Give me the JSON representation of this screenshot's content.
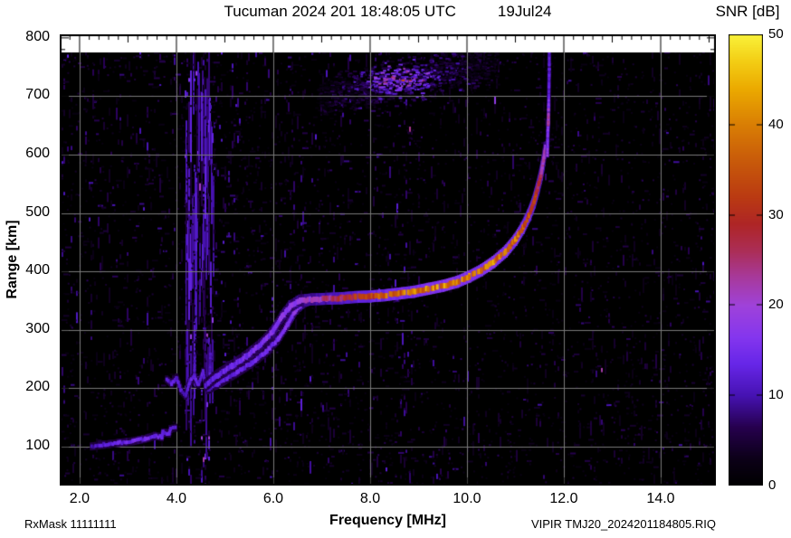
{
  "header": {
    "title": "Tucuman 2024 201 18:48:05 UTC",
    "date": "19Jul24",
    "colorbar_title": "SNR [dB]"
  },
  "footer": {
    "rxmask": "RxMask 11111111",
    "source": "VIPIR  TMJ20_2024201184805.RIQ"
  },
  "chart_data": {
    "type": "heatmap",
    "title": "Tucuman 2024 201 18:48:05 UTC 19Jul24",
    "xlabel": "Frequency [MHz]",
    "ylabel": "Range [km]",
    "xlim": [
      1.59,
      15.14
    ],
    "ylim": [
      33,
      806
    ],
    "xticks": [
      2,
      4,
      6,
      8,
      10,
      12,
      14
    ],
    "xtick_labels": [
      "2.0",
      "4.0",
      "6.0",
      "8.0",
      "10.0",
      "12.0",
      "14.0"
    ],
    "yticks": [
      100,
      200,
      300,
      400,
      500,
      600,
      700,
      800
    ],
    "grid": true,
    "grid_color": "#7a7a7a",
    "background_color": "#000000",
    "no_data_above_km": 775,
    "seed": 20240719,
    "colorbar": {
      "label": "SNR [dB]",
      "min": 0,
      "max": 50,
      "ticks": [
        0,
        10,
        20,
        30,
        40,
        50
      ],
      "palette": [
        [
          0.0,
          "#000000"
        ],
        [
          0.06,
          "#0c0018"
        ],
        [
          0.13,
          "#26004e"
        ],
        [
          0.2,
          "#4612b2"
        ],
        [
          0.27,
          "#6726e8"
        ],
        [
          0.33,
          "#8536ee"
        ],
        [
          0.4,
          "#9f42da"
        ],
        [
          0.46,
          "#a73a9e"
        ],
        [
          0.52,
          "#ab2e58"
        ],
        [
          0.58,
          "#ae2526"
        ],
        [
          0.64,
          "#ba3a12"
        ],
        [
          0.72,
          "#c85a0a"
        ],
        [
          0.8,
          "#d97e04"
        ],
        [
          0.88,
          "#ebaa00"
        ],
        [
          0.94,
          "#f3cd14"
        ],
        [
          1.0,
          "#f9f23a"
        ]
      ]
    },
    "noise_bands": [
      {
        "f0": 1.59,
        "f1": 1.85,
        "s": 0.55
      },
      {
        "f0": 1.85,
        "f1": 2.2,
        "s": 0.4
      },
      {
        "f0": 2.2,
        "f1": 2.7,
        "s": 0.3
      },
      {
        "f0": 2.7,
        "f1": 3.1,
        "s": 0.34
      },
      {
        "f0": 3.1,
        "f1": 3.45,
        "s": 0.42
      },
      {
        "f0": 3.45,
        "f1": 3.8,
        "s": 0.3
      },
      {
        "f0": 3.8,
        "f1": 4.15,
        "s": 0.38
      },
      {
        "f0": 4.15,
        "f1": 4.75,
        "s": 0.85
      },
      {
        "f0": 4.75,
        "f1": 5.1,
        "s": 0.45
      },
      {
        "f0": 5.1,
        "f1": 5.5,
        "s": 0.38
      },
      {
        "f0": 5.5,
        "f1": 5.9,
        "s": 0.33
      },
      {
        "f0": 5.9,
        "f1": 6.25,
        "s": 0.38
      },
      {
        "f0": 6.25,
        "f1": 6.7,
        "s": 0.42
      },
      {
        "f0": 6.7,
        "f1": 7.1,
        "s": 0.36
      },
      {
        "f0": 7.1,
        "f1": 7.6,
        "s": 0.32
      },
      {
        "f0": 7.6,
        "f1": 8.1,
        "s": 0.3
      },
      {
        "f0": 8.1,
        "f1": 8.5,
        "s": 0.38
      },
      {
        "f0": 8.5,
        "f1": 8.9,
        "s": 0.42
      },
      {
        "f0": 8.9,
        "f1": 9.3,
        "s": 0.3
      },
      {
        "f0": 9.3,
        "f1": 9.7,
        "s": 0.34
      },
      {
        "f0": 9.7,
        "f1": 10.1,
        "s": 0.32
      },
      {
        "f0": 10.1,
        "f1": 10.5,
        "s": 0.28
      },
      {
        "f0": 10.5,
        "f1": 10.9,
        "s": 0.26
      },
      {
        "f0": 10.9,
        "f1": 11.3,
        "s": 0.24
      },
      {
        "f0": 11.3,
        "f1": 11.8,
        "s": 0.26
      },
      {
        "f0": 11.8,
        "f1": 12.2,
        "s": 0.22
      },
      {
        "f0": 12.2,
        "f1": 12.55,
        "s": 0.26
      },
      {
        "f0": 12.55,
        "f1": 12.8,
        "s": 0.32
      },
      {
        "f0": 12.8,
        "f1": 13.3,
        "s": 0.2
      },
      {
        "f0": 13.3,
        "f1": 13.8,
        "s": 0.22
      },
      {
        "f0": 13.8,
        "f1": 14.3,
        "s": 0.26
      },
      {
        "f0": 14.3,
        "f1": 14.75,
        "s": 0.22
      },
      {
        "f0": 14.75,
        "f1": 15.14,
        "s": 0.34
      }
    ],
    "spread_f_cloud": {
      "f0": 6.9,
      "f1": 10.6,
      "r_at_f0": 700,
      "r_at_f1": 762,
      "half_width_km": 24,
      "snr": 15,
      "hotspot": {
        "f": 8.6,
        "r": 730,
        "snr": 26
      }
    },
    "traces": [
      {
        "name": "Es-layer",
        "thick": 4,
        "halo": true,
        "points": [
          [
            2.25,
            100,
            10
          ],
          [
            2.5,
            103,
            12
          ],
          [
            2.8,
            106,
            13
          ],
          [
            3.1,
            109,
            14
          ],
          [
            3.35,
            113,
            14
          ],
          [
            3.55,
            118,
            14
          ],
          [
            3.7,
            116,
            13
          ],
          [
            3.72,
            124,
            13
          ],
          [
            3.85,
            122,
            14
          ],
          [
            3.88,
            130,
            13
          ],
          [
            3.98,
            132,
            12
          ]
        ]
      },
      {
        "name": "E-F-cusp-jag",
        "thick": 4,
        "halo": true,
        "points": [
          [
            3.8,
            215,
            11
          ],
          [
            3.9,
            208,
            12
          ],
          [
            4.0,
            218,
            12
          ],
          [
            4.1,
            195,
            11
          ],
          [
            4.19,
            187,
            11
          ],
          [
            4.28,
            212,
            13
          ],
          [
            4.37,
            220,
            13
          ],
          [
            4.45,
            205,
            12
          ],
          [
            4.55,
            228,
            13
          ],
          [
            4.6,
            205,
            12
          ]
        ]
      },
      {
        "name": "cusp-spike-1",
        "thick": 3,
        "halo": false,
        "points": [
          [
            4.37,
            218,
            12
          ],
          [
            4.38,
            255,
            10
          ]
        ]
      },
      {
        "name": "cusp-spike-2",
        "thick": 3,
        "halo": false,
        "points": [
          [
            4.69,
            215,
            12
          ],
          [
            4.7,
            260,
            10
          ]
        ]
      },
      {
        "name": "F-layer-X-branch",
        "thick": 5,
        "halo": true,
        "points": [
          [
            4.65,
            198,
            11
          ],
          [
            4.95,
            212,
            12
          ],
          [
            5.25,
            227,
            13
          ],
          [
            5.55,
            243,
            13
          ],
          [
            5.85,
            262,
            14
          ],
          [
            6.1,
            284,
            15
          ],
          [
            6.3,
            310,
            16
          ],
          [
            6.45,
            332,
            17
          ],
          [
            6.62,
            346,
            18
          ],
          [
            6.78,
            351,
            18
          ]
        ]
      },
      {
        "name": "F-layer-O-branch",
        "thick": 6,
        "halo": true,
        "points": [
          [
            4.6,
            205,
            12
          ],
          [
            4.85,
            222,
            13
          ],
          [
            5.15,
            238,
            14
          ],
          [
            5.45,
            255,
            15
          ],
          [
            5.75,
            275,
            15
          ],
          [
            6.0,
            298,
            16
          ],
          [
            6.18,
            322,
            17
          ],
          [
            6.35,
            340,
            18
          ],
          [
            6.55,
            350,
            19
          ],
          [
            6.8,
            352,
            21
          ],
          [
            7.1,
            353,
            24
          ],
          [
            7.4,
            354,
            28
          ],
          [
            7.7,
            356,
            31
          ],
          [
            8.0,
            357,
            34
          ],
          [
            8.3,
            359,
            36
          ],
          [
            8.6,
            362,
            37
          ],
          [
            8.9,
            365,
            38
          ],
          [
            9.2,
            370,
            40
          ],
          [
            9.5,
            375,
            40
          ],
          [
            9.8,
            382,
            41
          ],
          [
            10.05,
            391,
            41
          ],
          [
            10.3,
            402,
            41
          ],
          [
            10.55,
            416,
            40
          ],
          [
            10.8,
            434,
            39
          ],
          [
            11.0,
            454,
            38
          ],
          [
            11.15,
            474,
            36
          ],
          [
            11.28,
            496,
            34
          ],
          [
            11.38,
            518,
            32
          ],
          [
            11.46,
            542,
            29
          ],
          [
            11.53,
            566,
            26
          ],
          [
            11.58,
            590,
            22
          ],
          [
            11.62,
            612,
            19
          ]
        ]
      },
      {
        "name": "F-top-spur",
        "thick": 3,
        "halo": true,
        "points": [
          [
            11.66,
            600,
            18
          ],
          [
            11.67,
            640,
            14
          ],
          [
            11.68,
            655,
            24
          ],
          [
            11.69,
            700,
            13
          ],
          [
            11.7,
            745,
            12
          ],
          [
            11.7,
            778,
            11
          ]
        ]
      }
    ]
  }
}
